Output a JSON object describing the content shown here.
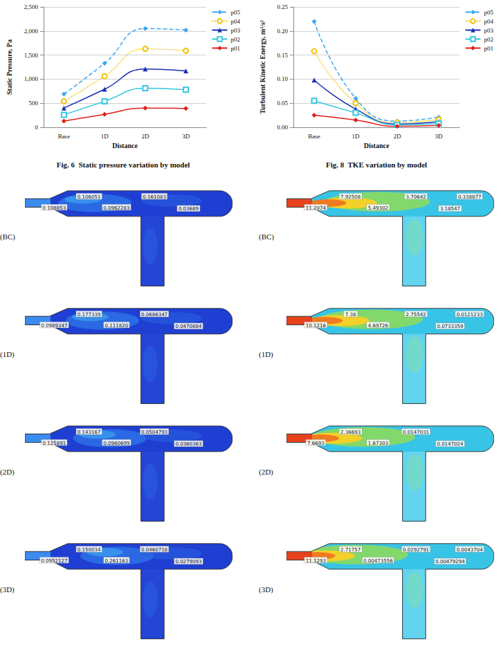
{
  "chart_data": [
    {
      "type": "line",
      "title": "Fig. 6  Static pressure variation by model",
      "x_label": "Distance",
      "y_label": "Static Pressure, Pa",
      "categories": [
        "Base",
        "1D",
        "2D",
        "3D"
      ],
      "series": [
        {
          "name": "p05",
          "color": "#3aa6f5",
          "marker": "diamond",
          "line_style": "dashed",
          "values": [
            690,
            1330,
            2050,
            2020
          ]
        },
        {
          "name": "p04",
          "color": "#f2c200",
          "marker": "circle_open",
          "line_style": "dotted",
          "values": [
            540,
            1060,
            1630,
            1590
          ]
        },
        {
          "name": "p03",
          "color": "#1a2fb8",
          "marker": "triangle",
          "line_style": "solid",
          "values": [
            400,
            790,
            1210,
            1170
          ]
        },
        {
          "name": "p02",
          "color": "#35c6e0",
          "marker": "square_open",
          "line_style": "solid",
          "values": [
            260,
            540,
            810,
            780
          ]
        },
        {
          "name": "p01",
          "color": "#e0201b",
          "marker": "diamond",
          "line_style": "solid",
          "values": [
            130,
            270,
            400,
            390
          ]
        }
      ],
      "ylim": [
        0,
        2500
      ],
      "yticks": [
        0,
        500,
        {
          "value": 1000,
          "label": "1,000"
        },
        {
          "value": 1500,
          "label": "1,500"
        },
        {
          "value": 2000,
          "label": "2,000"
        },
        {
          "value": 2500,
          "label": "2,500"
        }
      ],
      "grid": true,
      "legend": "right"
    },
    {
      "type": "line",
      "title": "Fig. 8  TKE variation by model",
      "x_label": "Distance",
      "y_label": "Turbulent Kinetic Energy, m²/s²",
      "categories": [
        "Base",
        "1D",
        "2D",
        "3D"
      ],
      "series": [
        {
          "name": "p05",
          "color": "#3aa6f5",
          "marker": "diamond",
          "line_style": "dashed",
          "values": [
            0.22,
            0.06,
            0.013,
            0.021
          ]
        },
        {
          "name": "p04",
          "color": "#f2c200",
          "marker": "circle_open",
          "line_style": "dotted",
          "values": [
            0.158,
            0.05,
            0.01,
            0.016
          ]
        },
        {
          "name": "p03",
          "color": "#1a2fb8",
          "marker": "triangle",
          "line_style": "solid",
          "values": [
            0.098,
            0.038,
            0.007,
            0.012
          ]
        },
        {
          "name": "p02",
          "color": "#35c6e0",
          "marker": "square_open",
          "line_style": "solid",
          "values": [
            0.055,
            0.03,
            0.005,
            0.008
          ]
        },
        {
          "name": "p01",
          "color": "#e0201b",
          "marker": "diamond",
          "line_style": "solid",
          "values": [
            0.025,
            0.015,
            0.002,
            0.004
          ]
        }
      ],
      "ylim": [
        0,
        0.25
      ],
      "yticks": [
        {
          "value": 0,
          "label": "0.00"
        },
        {
          "value": 0.05,
          "label": "0.05"
        },
        {
          "value": 0.1,
          "label": "0.10"
        },
        {
          "value": 0.15,
          "label": "0.15"
        },
        {
          "value": 0.2,
          "label": "0.20"
        },
        {
          "value": 0.25,
          "label": "0.25"
        }
      ],
      "grid": true,
      "legend": "right"
    }
  ],
  "contours": {
    "left": [
      {
        "label": "(BC)",
        "annotations": [
          "0.108853",
          "0.106051",
          "0.0962283",
          "0.161083",
          "0.03689"
        ]
      },
      {
        "label": "(1D)",
        "annotations": [
          "0.0989347",
          "0.177339",
          "0.111820",
          "0.0686347",
          "0.0470884"
        ]
      },
      {
        "label": "(2D)",
        "annotations": [
          "0.125891",
          "0.143167",
          "0.0960699",
          "0.0504793",
          "0.0360363"
        ]
      },
      {
        "label": "(3D)",
        "annotations": [
          "0.0952127",
          "0.150034",
          "0.261163",
          "0.0460718",
          "0.0279093"
        ]
      }
    ],
    "right": [
      {
        "label": "(BC)",
        "annotations": [
          "11.2074",
          "7.92508",
          "5.49302",
          "3.70642",
          "3.18547",
          "0.338877"
        ]
      },
      {
        "label": "(1D)",
        "annotations": [
          "10.1216",
          "7.38",
          "4.69726",
          "2.75542",
          "0.0733359",
          "0.0121233"
        ]
      },
      {
        "label": "(2D)",
        "annotations": [
          "7.6693",
          "2.36693",
          "1.67303",
          "0.0147031",
          "0.0147024"
        ]
      },
      {
        "label": "(3D)",
        "annotations": [
          "11.1293",
          "2.71757",
          "0.00473556",
          "0.0292791",
          "0.00479294",
          "0.0043704"
        ]
      }
    ]
  }
}
